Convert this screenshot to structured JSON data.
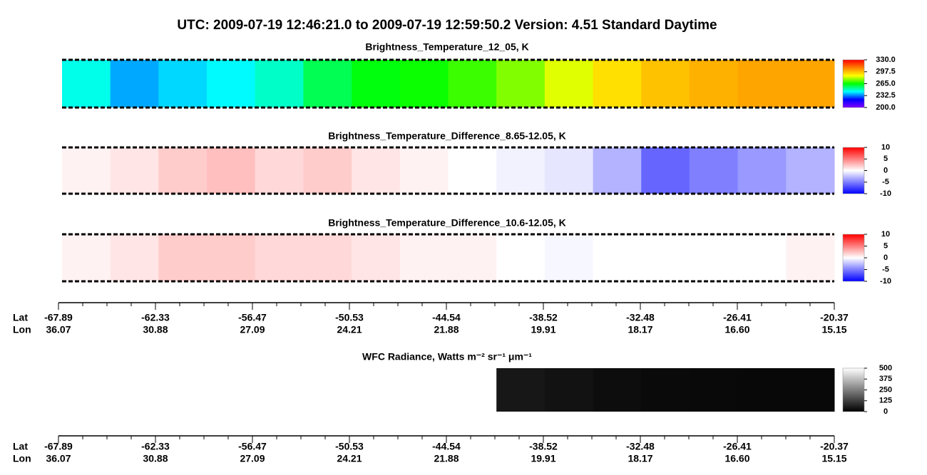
{
  "suptitle": "UTC:  2009-07-19   12:46:21.0  to  2009-07-19   12:59:50.2    Version: 4.51  Standard Daytime",
  "axis": {
    "lat_label": "Lat",
    "lon_label": "Lon",
    "lat": [
      "-67.89",
      "-62.33",
      "-56.47",
      "-50.53",
      "-44.54",
      "-38.52",
      "-32.48",
      "-26.41",
      "-20.37"
    ],
    "lon": [
      "36.07",
      "30.88",
      "27.09",
      "24.21",
      "21.88",
      "19.91",
      "18.17",
      "16.60",
      "15.15"
    ]
  },
  "chart_data": [
    {
      "type": "heatmap",
      "title": "Brightness_Temperature_12_05, K",
      "values": [
        245,
        236,
        240,
        243,
        248,
        258,
        264,
        266,
        270,
        276,
        284,
        292,
        297,
        300,
        302,
        302
      ],
      "colors": [
        "#8000ff",
        "#0000ff",
        "#00ffff",
        "#00ff00",
        "#ffff00",
        "#ff8000",
        "#ff0000"
      ],
      "clim": [
        200,
        330
      ],
      "cticks": [
        {
          "value": 330,
          "label": "330.0"
        },
        {
          "value": 297.5,
          "label": "297.5"
        },
        {
          "value": 265,
          "label": "265.0"
        },
        {
          "value": 232.5,
          "label": "232.5"
        },
        {
          "value": 200,
          "label": "200.0"
        }
      ]
    },
    {
      "type": "heatmap",
      "title": "Brightness_Temperature_Difference_8.65-12.05, K",
      "values": [
        0.5,
        1,
        2,
        2.5,
        1.5,
        2,
        1,
        0.5,
        0,
        -0.5,
        -1,
        -3,
        -6,
        -5,
        -4,
        -3
      ],
      "colors": [
        "#0000ff",
        "#ffffff",
        "#ff0000"
      ],
      "clim": [
        -10,
        10
      ],
      "cticks": [
        10,
        5,
        0,
        -5,
        -10
      ]
    },
    {
      "type": "heatmap",
      "title": "Brightness_Temperature_Difference_10.6-12.05, K",
      "values": [
        0.5,
        1,
        2,
        2,
        1.5,
        1.5,
        1,
        0.5,
        0.5,
        0,
        -0.3,
        0,
        0,
        0,
        0,
        0.5
      ],
      "colors": [
        "#0000ff",
        "#ffffff",
        "#ff0000"
      ],
      "clim": [
        -10,
        10
      ],
      "cticks": [
        10,
        5,
        0,
        -5,
        -10
      ]
    },
    {
      "type": "heatmap",
      "title": "WFC Radiance, Watts m⁻² sr⁻¹ μm⁻¹",
      "values": [
        null,
        null,
        null,
        null,
        null,
        null,
        null,
        null,
        null,
        45,
        35,
        25,
        20,
        18,
        15,
        15
      ],
      "colors": [
        "#000000",
        "#ffffff"
      ],
      "clim": [
        0,
        500
      ],
      "cticks": [
        500,
        375,
        250,
        125,
        0
      ]
    }
  ]
}
